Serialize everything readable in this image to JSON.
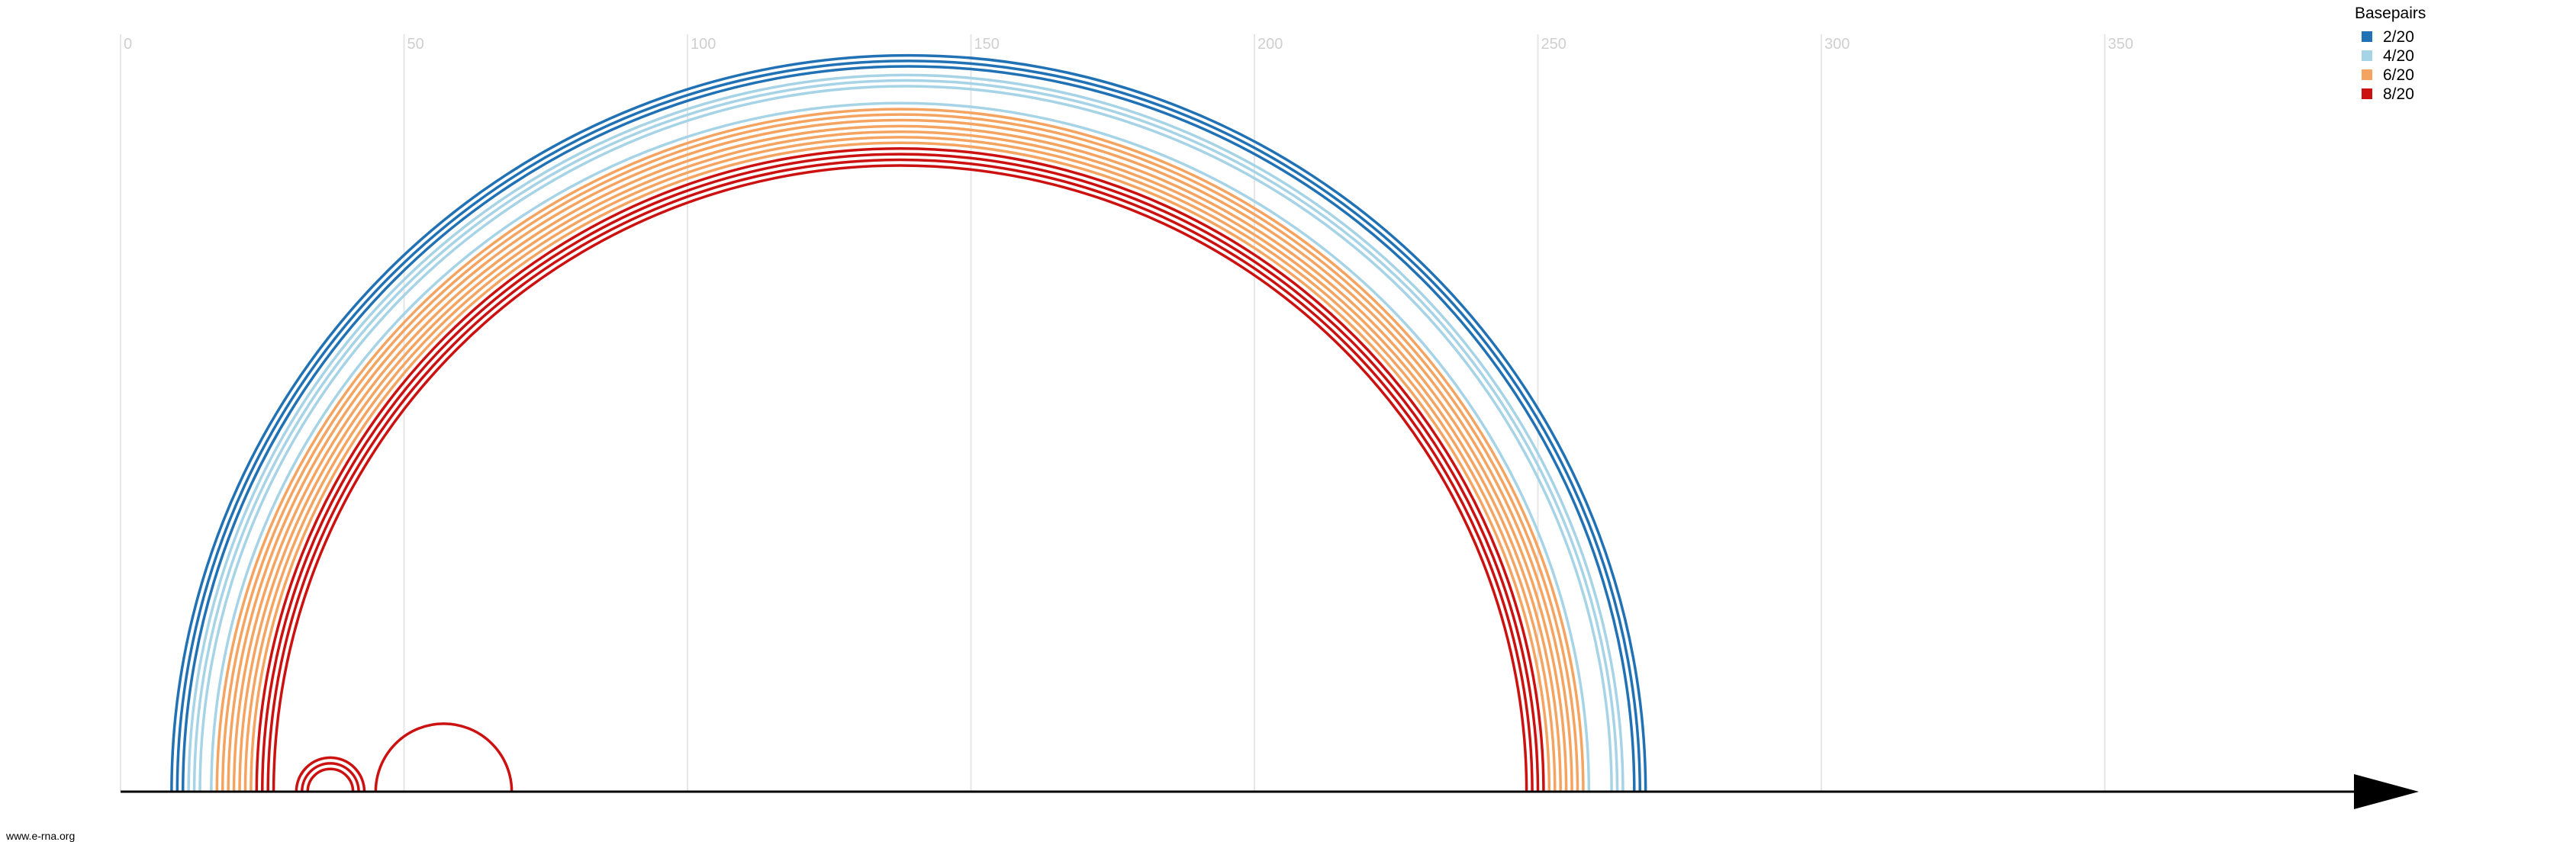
{
  "footer_text": "www.e-rna.org",
  "chart_data": {
    "type": "arc",
    "xlim": [
      0,
      405
    ],
    "ticks": [
      0,
      50,
      100,
      150,
      200,
      250,
      300,
      350
    ],
    "tick_labels": [
      "0",
      "50",
      "100",
      "150",
      "200",
      "250",
      "300",
      "350"
    ],
    "grid": true,
    "axis_arrow": true,
    "legend": {
      "title": "Basepairs",
      "placement": "top-right",
      "entries": [
        {
          "label": "2/20",
          "color": "#2171b5"
        },
        {
          "label": "4/20",
          "color": "#a6d4e6"
        },
        {
          "label": "6/20",
          "color": "#f4a460"
        },
        {
          "label": "8/20",
          "color": "#cc1111"
        }
      ]
    },
    "arcs": [
      {
        "i": 9,
        "j": 269,
        "group": 0
      },
      {
        "i": 10,
        "j": 268,
        "group": 0
      },
      {
        "i": 11,
        "j": 267,
        "group": 0
      },
      {
        "i": 12,
        "j": 265,
        "group": 1
      },
      {
        "i": 13,
        "j": 264,
        "group": 1
      },
      {
        "i": 14,
        "j": 263,
        "group": 1
      },
      {
        "i": 16,
        "j": 259,
        "group": 1
      },
      {
        "i": 17,
        "j": 258,
        "group": 2
      },
      {
        "i": 18,
        "j": 257,
        "group": 2
      },
      {
        "i": 19,
        "j": 256,
        "group": 2
      },
      {
        "i": 20,
        "j": 255,
        "group": 2
      },
      {
        "i": 21,
        "j": 254,
        "group": 2
      },
      {
        "i": 22,
        "j": 253,
        "group": 2
      },
      {
        "i": 23,
        "j": 252,
        "group": 2
      },
      {
        "i": 24,
        "j": 251,
        "group": 3
      },
      {
        "i": 25,
        "j": 250,
        "group": 3
      },
      {
        "i": 26,
        "j": 249,
        "group": 3
      },
      {
        "i": 27,
        "j": 248,
        "group": 3
      },
      {
        "i": 31,
        "j": 43,
        "group": 3
      },
      {
        "i": 32,
        "j": 42,
        "group": 3
      },
      {
        "i": 33,
        "j": 41,
        "group": 3
      },
      {
        "i": 45,
        "j": 69,
        "group": 3
      }
    ]
  }
}
